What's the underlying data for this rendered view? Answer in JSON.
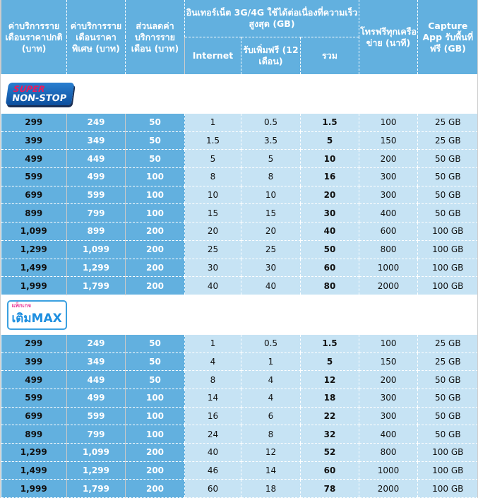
{
  "headers": {
    "regular": "ค่าบริการรายเดือนราคาปกติ (บาท)",
    "special": "ค่าบริการรายเดือนราคาพิเศษ (บาท)",
    "discount": "ส่วนลดค่าบริการรายเดือน (บาท)",
    "internet_group": "อินเทอร์เน็ต 3G/4G ใช้ได้ต่อเนื่องที่ความเร็วสูงสุด (GB)",
    "internet": "Internet",
    "bonus": "รับเพิ่มฟรี (12 เดือน)",
    "total": "รวม",
    "calls": "โทรฟรีทุกเครือข่าย (นาที)",
    "capture": "Capture App รับพื้นที่ฟรี (GB)"
  },
  "sections": [
    {
      "logo": "SUPER NON-STOP",
      "logo_top": "SUPER",
      "logo_bottom": "NON-STOP",
      "rows": [
        [
          "299",
          "249",
          "50",
          "1",
          "0.5",
          "1.5",
          "100",
          "25 GB"
        ],
        [
          "399",
          "349",
          "50",
          "1.5",
          "3.5",
          "5",
          "150",
          "25 GB"
        ],
        [
          "499",
          "449",
          "50",
          "5",
          "5",
          "10",
          "200",
          "50 GB"
        ],
        [
          "599",
          "499",
          "100",
          "8",
          "8",
          "16",
          "300",
          "50 GB"
        ],
        [
          "699",
          "599",
          "100",
          "10",
          "10",
          "20",
          "300",
          "50 GB"
        ],
        [
          "899",
          "799",
          "100",
          "15",
          "15",
          "30",
          "400",
          "50 GB"
        ],
        [
          "1,099",
          "899",
          "200",
          "20",
          "20",
          "40",
          "600",
          "100 GB"
        ],
        [
          "1,299",
          "1,099",
          "200",
          "25",
          "25",
          "50",
          "800",
          "100 GB"
        ],
        [
          "1,499",
          "1,299",
          "200",
          "30",
          "30",
          "60",
          "1000",
          "100 GB"
        ],
        [
          "1,999",
          "1,799",
          "200",
          "40",
          "40",
          "80",
          "2000",
          "100 GB"
        ]
      ]
    },
    {
      "logo": "เติมMAX",
      "logo_top": "แพ็กเกจ",
      "logo_bottom": "เติมMAX",
      "rows": [
        [
          "299",
          "249",
          "50",
          "1",
          "0.5",
          "1.5",
          "100",
          "25 GB"
        ],
        [
          "399",
          "349",
          "50",
          "4",
          "1",
          "5",
          "150",
          "25 GB"
        ],
        [
          "499",
          "449",
          "50",
          "8",
          "4",
          "12",
          "200",
          "50 GB"
        ],
        [
          "599",
          "499",
          "100",
          "14",
          "4",
          "18",
          "300",
          "50 GB"
        ],
        [
          "699",
          "599",
          "100",
          "16",
          "6",
          "22",
          "300",
          "50 GB"
        ],
        [
          "899",
          "799",
          "100",
          "24",
          "8",
          "32",
          "400",
          "50 GB"
        ],
        [
          "1,299",
          "1,099",
          "200",
          "40",
          "12",
          "52",
          "800",
          "100 GB"
        ],
        [
          "1,499",
          "1,299",
          "200",
          "46",
          "14",
          "60",
          "1000",
          "100 GB"
        ],
        [
          "1,999",
          "1,799",
          "200",
          "60",
          "18",
          "78",
          "2000",
          "100 GB"
        ]
      ]
    }
  ]
}
